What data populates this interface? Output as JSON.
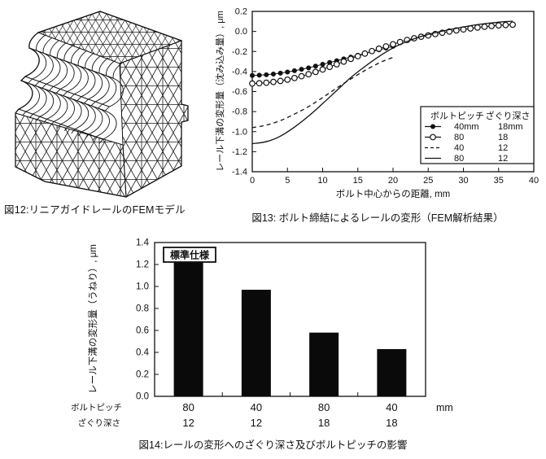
{
  "figures": {
    "fig12": {
      "caption": "図12:リニアガイドレールのFEMモデル"
    },
    "fig13": {
      "caption": "図13: ボルト締結によるレールの変形（FEM解析結果）"
    },
    "fig14": {
      "caption": "図14:レールの変形へのざぐり深さ及びボルトピッチの影響"
    }
  },
  "chart_data": [
    {
      "type": "line",
      "title": "",
      "xlabel": "ボルト中心からの距離, mm",
      "ylabel": "レール下溝の変形量（沈み込み量）, μm",
      "xlim": [
        0,
        40
      ],
      "ylim": [
        -1.4,
        0.2
      ],
      "xticks": [
        0,
        5,
        10,
        15,
        20,
        25,
        30,
        35,
        40
      ],
      "yticks": [
        0.2,
        0.0,
        -0.2,
        -0.4,
        -0.6,
        -0.8,
        -1.0,
        -1.2,
        -1.4
      ],
      "grid": false,
      "legend": {
        "position": "lower-right",
        "col1_header": "ボルトピッチ",
        "col2_header": "ざぐり深さ",
        "rows": [
          {
            "marker": "filled-circle",
            "pitch": "40mm",
            "depth": "18mm"
          },
          {
            "marker": "open-circle",
            "pitch": "80",
            "depth": "18"
          },
          {
            "marker": "dashed-line",
            "pitch": "40",
            "depth": "12"
          },
          {
            "marker": "solid-line",
            "pitch": "80",
            "depth": "12"
          }
        ]
      },
      "series": [
        {
          "name": "pitch40-depth18",
          "style": "filled-circle",
          "x": [
            0,
            1,
            2,
            3,
            4,
            5,
            6,
            7,
            8,
            9,
            10,
            11,
            12,
            13,
            14,
            15,
            16,
            17,
            18,
            19,
            20
          ],
          "y": [
            -0.44,
            -0.437,
            -0.432,
            -0.425,
            -0.416,
            -0.405,
            -0.392,
            -0.378,
            -0.363,
            -0.346,
            -0.328,
            -0.31,
            -0.292,
            -0.274,
            -0.256,
            -0.238,
            -0.22,
            -0.202,
            -0.184,
            -0.166,
            -0.148
          ]
        },
        {
          "name": "pitch80-depth18",
          "style": "open-circle",
          "x": [
            0,
            1,
            2,
            3,
            4,
            5,
            6,
            7,
            8,
            9,
            10,
            11,
            12,
            13,
            14,
            15,
            16,
            17,
            18,
            19,
            20,
            21,
            22,
            23,
            24,
            25,
            26,
            27,
            28,
            29,
            30,
            31,
            32,
            33,
            34,
            35,
            36,
            37
          ],
          "y": [
            -0.52,
            -0.517,
            -0.512,
            -0.504,
            -0.494,
            -0.481,
            -0.465,
            -0.447,
            -0.427,
            -0.404,
            -0.38,
            -0.354,
            -0.328,
            -0.301,
            -0.274,
            -0.247,
            -0.221,
            -0.196,
            -0.172,
            -0.149,
            -0.128,
            -0.106,
            -0.085,
            -0.068,
            -0.053,
            -0.04,
            -0.026,
            -0.013,
            -0.001,
            0.01,
            0.02,
            0.03,
            0.039,
            0.047,
            0.054,
            0.06,
            0.064,
            0.067
          ]
        },
        {
          "name": "pitch40-depth12",
          "style": "dashed",
          "x": [
            0,
            2,
            4,
            6,
            8,
            10,
            12,
            14,
            16,
            18,
            19,
            20
          ],
          "y": [
            -0.96,
            -0.935,
            -0.89,
            -0.825,
            -0.75,
            -0.66,
            -0.565,
            -0.475,
            -0.39,
            -0.315,
            -0.285,
            -0.26
          ]
        },
        {
          "name": "pitch80-depth12",
          "style": "solid",
          "x": [
            0,
            2,
            4,
            6,
            8,
            10,
            12,
            14,
            16,
            18,
            20,
            22,
            24,
            26,
            28,
            30,
            32,
            34,
            36,
            37
          ],
          "y": [
            -1.12,
            -1.1,
            -1.045,
            -0.955,
            -0.845,
            -0.72,
            -0.59,
            -0.46,
            -0.35,
            -0.25,
            -0.165,
            -0.1,
            -0.05,
            -0.012,
            0.018,
            0.045,
            0.068,
            0.085,
            0.098,
            0.102
          ]
        }
      ]
    },
    {
      "type": "bar",
      "title": "",
      "ylabel": "レール下溝の変形量（うねり）, μm",
      "ylim": [
        0,
        1.4
      ],
      "yticks": [
        0.0,
        0.2,
        0.4,
        0.6,
        0.8,
        1.0,
        1.2,
        1.4
      ],
      "annotation": "標準仕様",
      "bar_color": "#0a0a0a",
      "unit_label": "mm",
      "row1_header": "ボルトピッチ",
      "row2_header": "ざぐり深さ",
      "categories_pitch": [
        "80",
        "40",
        "80",
        "40"
      ],
      "categories_depth": [
        "12",
        "12",
        "18",
        "18"
      ],
      "values": [
        1.24,
        0.97,
        0.58,
        0.43
      ]
    }
  ]
}
